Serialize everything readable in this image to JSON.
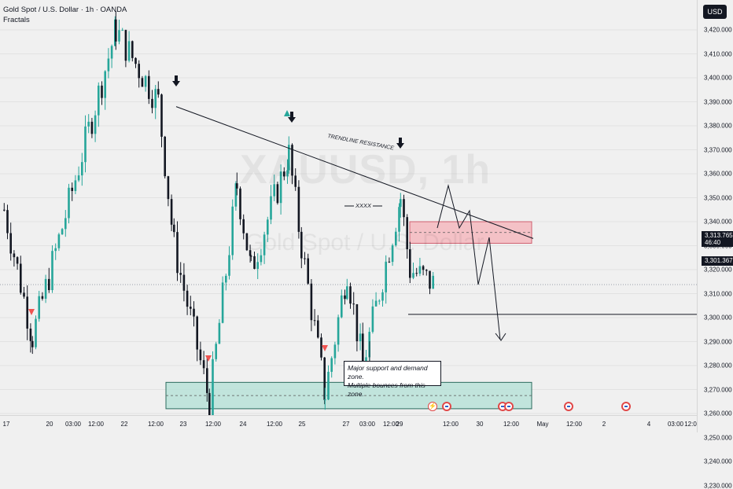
{
  "header": {
    "title": "Gold Spot / U.S. Dollar · 1h · OANDA",
    "indicator": "Fractals"
  },
  "watermark": {
    "symbol": "XAUUSD, 1h",
    "name": "Gold Spot / U.S. Dollar"
  },
  "currency_button": "USD",
  "price_axis": {
    "ticks": [
      "3,420.000",
      "3,410.000",
      "3,400.000",
      "3,390.000",
      "3,380.000",
      "3,370.000",
      "3,360.000",
      "3,350.000",
      "3,340.000",
      "3,330.000",
      "3,320.000",
      "3,310.000",
      "3,300.000",
      "3,290.000",
      "3,280.000",
      "3,270.000",
      "3,260.000",
      "3,250.000",
      "3,240.000",
      "3,230.000"
    ],
    "tick_values": [
      3420,
      3410,
      3400,
      3390,
      3380,
      3370,
      3360,
      3350,
      3340,
      3330,
      3320,
      3310,
      3300,
      3290,
      3280,
      3270,
      3260,
      3250,
      3240,
      3230
    ],
    "current_price": "3,313.765",
    "countdown": "46:40",
    "level_price": "3,301.367"
  },
  "time_axis": {
    "ticks": [
      "17",
      "20",
      "03:00",
      "12:00",
      "22",
      "12:00",
      "23",
      "12:00",
      "24",
      "12:00",
      "25",
      "27",
      "03:00",
      "12:00",
      "29",
      "12:00",
      "30",
      "12:00",
      "May",
      "12:00",
      "2",
      "4",
      "03:00",
      "12:0"
    ]
  },
  "annotations": {
    "trendline_label": "TRENDLINE RESISTANCE",
    "range_label": "XXXX",
    "callout_line1": "Major support and demand zone.",
    "callout_line2": "Multiple bounces from this zone."
  },
  "colors": {
    "bull": "#26a69a",
    "bear": "#131722",
    "resistance_zone": "#f4b8be",
    "support_zone": "#b9e2d8",
    "fractal_down": "#ef5350",
    "fractal_up": "#26a69a",
    "background": "#f0f0f0"
  },
  "icons": {
    "events": [
      "flash-event-icon",
      "us-flag-event-icon",
      "us-flag-event-icon",
      "us-flag-event-icon",
      "us-flag-event-icon",
      "us-flag-event-icon"
    ]
  },
  "chart_data": {
    "type": "candlestick",
    "symbol": "XAUUSD",
    "timeframe": "1h",
    "ylim": [
      3225,
      3428
    ],
    "key_points": [
      {
        "time": "Apr 17",
        "price": 3345
      },
      {
        "time": "Apr 17 late",
        "price": 3292
      },
      {
        "time": "Apr 21",
        "price": 3420
      },
      {
        "time": "Apr 22 12:00",
        "price": 3390
      },
      {
        "time": "Apr 23",
        "price": 3330
      },
      {
        "time": "Apr 23 12:00",
        "price": 3265
      },
      {
        "time": "Apr 24 03:00",
        "price": 3355
      },
      {
        "time": "Apr 24",
        "price": 3320
      },
      {
        "time": "Apr 24 12:00",
        "price": 3368
      },
      {
        "time": "Apr 25",
        "price": 3330
      },
      {
        "time": "Apr 25 12:00",
        "price": 3268
      },
      {
        "time": "Apr 27",
        "price": 3320
      },
      {
        "time": "Apr 28 03:00",
        "price": 3280
      },
      {
        "time": "Apr 28 12:00",
        "price": 3350
      },
      {
        "time": "Apr 29",
        "price": 3320
      },
      {
        "time": "Apr 29 late",
        "price": 3313.765
      }
    ],
    "zones": [
      {
        "name": "resistance",
        "low": 3331,
        "high": 3340
      },
      {
        "name": "support",
        "low": 3262,
        "high": 3273
      }
    ],
    "horizontal_levels": [
      3301.367
    ],
    "trendline": {
      "from_price": 3388,
      "to_price": 3333
    }
  }
}
